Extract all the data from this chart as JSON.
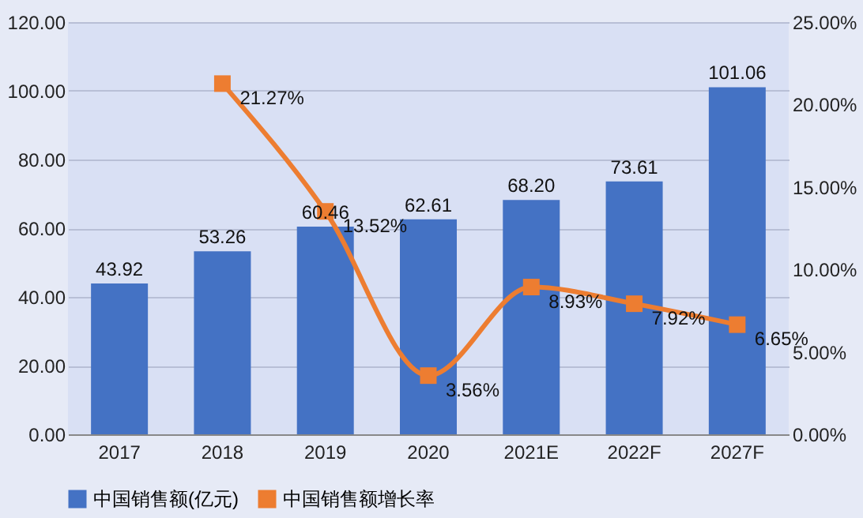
{
  "chart_data": {
    "type": "bar",
    "categories": [
      "2017",
      "2018",
      "2019",
      "2020",
      "2021E",
      "2022F",
      "2027F"
    ],
    "series": [
      {
        "name": "中国销售额(亿元)",
        "color": "#4472c4",
        "values": [
          43.92,
          53.26,
          60.46,
          62.61,
          68.2,
          73.61,
          101.06
        ],
        "value_labels": [
          "43.92",
          "53.26",
          "60.46",
          "62.61",
          "68.20",
          "73.61",
          "101.06"
        ]
      },
      {
        "name": "中国销售额增长率",
        "type": "line",
        "axis": "y2",
        "color": "#ed7d31",
        "values": [
          null,
          21.27,
          13.52,
          3.56,
          8.93,
          7.92,
          6.65
        ],
        "value_labels": [
          null,
          "21.27%",
          "13.52%",
          "3.56%",
          "8.93%",
          "7.92%",
          "6.65%"
        ]
      }
    ],
    "ylim": [
      0,
      120
    ],
    "yticks": [
      {
        "value": 0,
        "label": "0.00"
      },
      {
        "value": 20,
        "label": "20.00"
      },
      {
        "value": 40,
        "label": "40.00"
      },
      {
        "value": 60,
        "label": "60.00"
      },
      {
        "value": 80,
        "label": "80.00"
      },
      {
        "value": 100,
        "label": "100.00"
      },
      {
        "value": 120,
        "label": "120.00"
      }
    ],
    "y2lim": [
      0,
      25
    ],
    "y2ticks": [
      {
        "value": 0,
        "label": "0.00%"
      },
      {
        "value": 5,
        "label": "5.00%"
      },
      {
        "value": 10,
        "label": "10.00%"
      },
      {
        "value": 15,
        "label": "15.00%"
      },
      {
        "value": 20,
        "label": "20.00%"
      },
      {
        "value": 25,
        "label": "25.00%"
      }
    ],
    "grid": "y",
    "legend": "bottom",
    "marker": "square"
  }
}
